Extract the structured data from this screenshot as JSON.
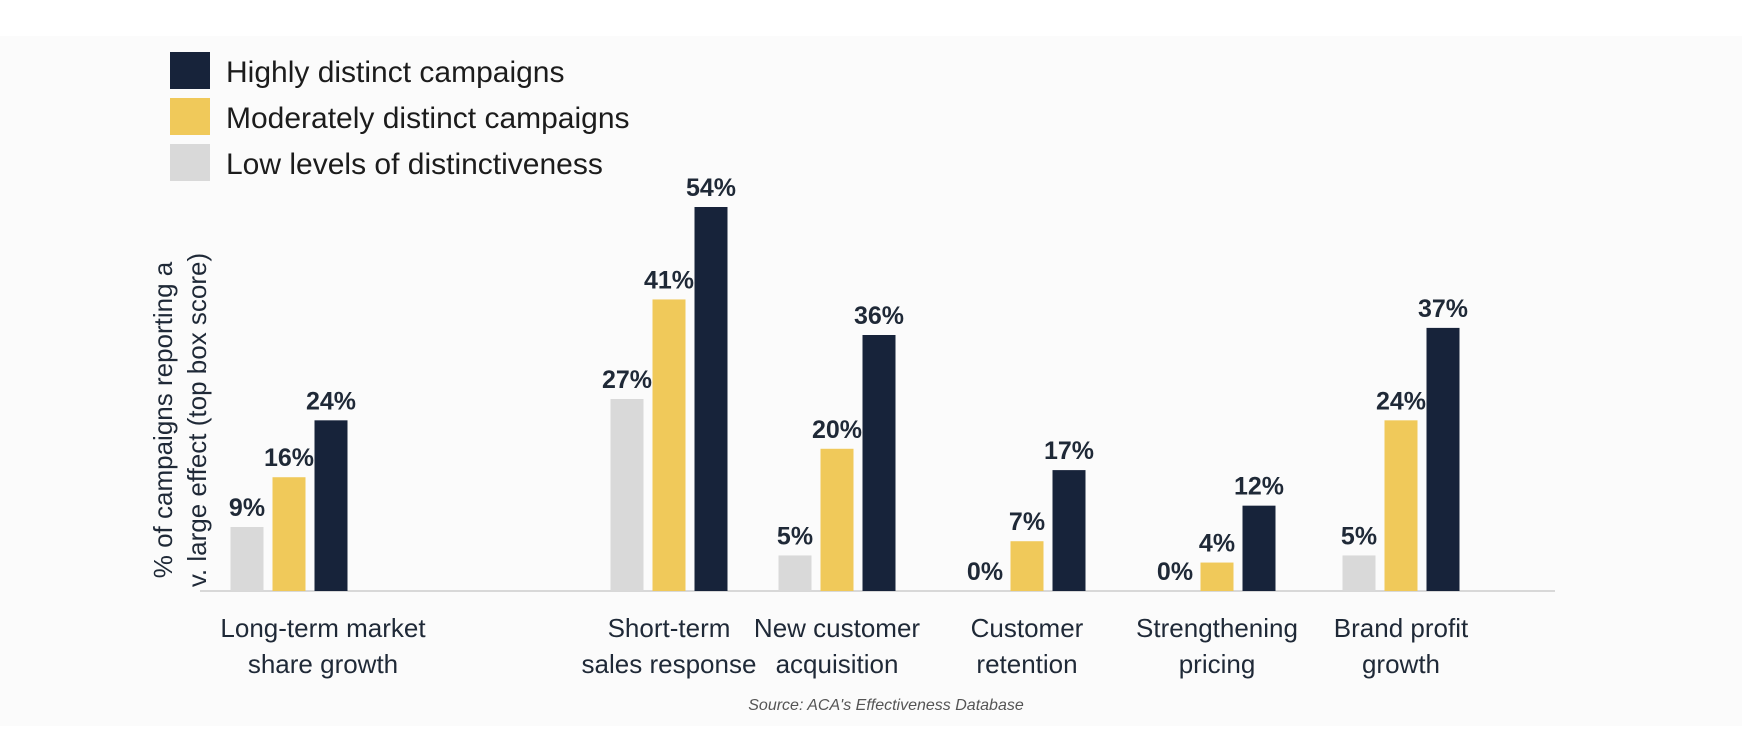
{
  "chart_data": {
    "type": "bar",
    "ylabel": [
      "% of campaigns reporting a",
      "v. large effect (top box score)"
    ],
    "categories": [
      [
        "Long-term market",
        "share growth"
      ],
      [
        "Short-term",
        "sales response"
      ],
      [
        "New customer",
        "acquisition"
      ],
      [
        "Customer",
        "retention"
      ],
      [
        "Strengthening",
        "pricing"
      ],
      [
        "Brand profit",
        "growth"
      ]
    ],
    "series": [
      {
        "name": "Low levels of distinctiveness",
        "color": "#d9d9d9",
        "values": [
          9,
          27,
          5,
          0,
          0,
          5
        ]
      },
      {
        "name": "Moderately distinct campaigns",
        "color": "#f0c95a",
        "values": [
          16,
          41,
          20,
          7,
          4,
          24
        ]
      },
      {
        "name": "Highly distinct campaigns",
        "color": "#17233a",
        "values": [
          24,
          54,
          36,
          17,
          12,
          37
        ]
      }
    ],
    "legend_order": [
      2,
      1,
      0
    ],
    "ylim": [
      0,
      54
    ],
    "source": "Source: ACA's Effectiveness Database",
    "value_suffix": "%"
  }
}
